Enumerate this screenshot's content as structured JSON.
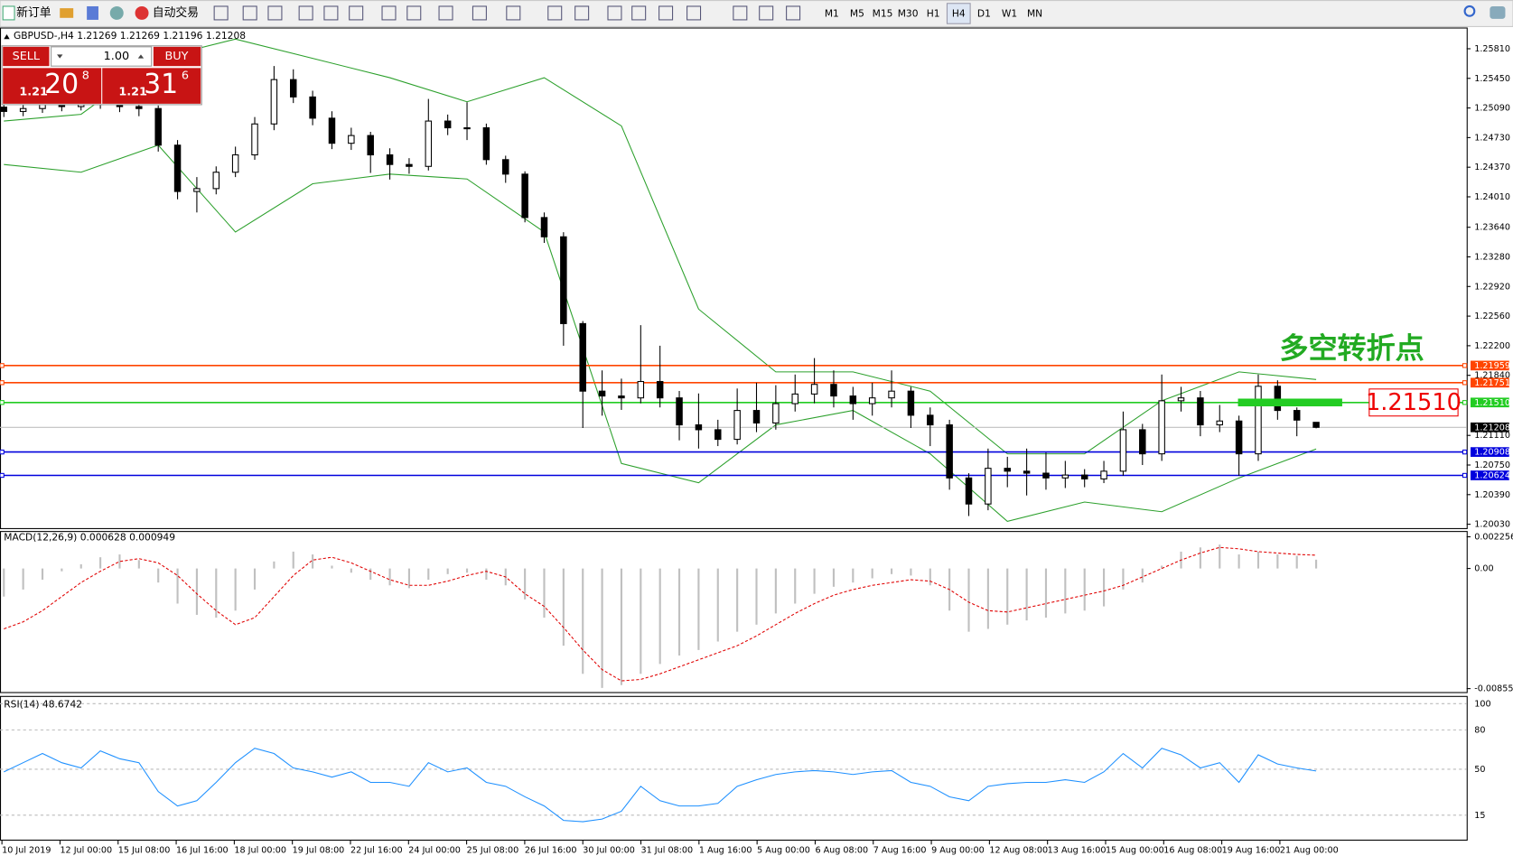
{
  "toolbar": {
    "new_order": "新订单",
    "auto_trading": "自动交易",
    "timeframes": [
      "M1",
      "M5",
      "M15",
      "M30",
      "H1",
      "H4",
      "D1",
      "W1",
      "MN"
    ],
    "active_timeframe": "H4"
  },
  "trade_panel": {
    "sell": "SELL",
    "buy": "BUY",
    "lot": "1.00",
    "sell_big": "1.21",
    "sell_main": "20",
    "sell_sup": "8",
    "buy_big": "1.21",
    "buy_main": "31",
    "buy_sup": "6"
  },
  "chart_data": [
    {
      "type": "candlestick",
      "title": "GBPUSD-,H4",
      "open": [
        1.251,
        1.25048,
        1.25083,
        1.2513,
        1.25107,
        1.25165,
        1.2513,
        1.25107,
        1.25083,
        1.24638,
        1.24075,
        1.2411,
        1.24309,
        1.2452,
        1.24896,
        1.25435,
        1.25224,
        1.24966,
        1.24661,
        1.24755,
        1.2452,
        1.24403,
        1.2438,
        1.24931,
        1.24849,
        1.24849,
        1.24462,
        1.24286,
        1.23758,
        1.23524,
        1.22469,
        1.21648,
        1.21589,
        1.21566,
        1.21765,
        1.21566,
        1.21238,
        1.21179,
        1.21062,
        1.21413,
        1.21261,
        1.21496,
        1.21613,
        1.2173,
        1.21589,
        1.21496,
        1.21566,
        1.21648,
        1.21355,
        1.21238,
        1.20593,
        1.20276,
        1.2071,
        1.20675,
        1.20651,
        1.20593,
        1.20628,
        1.20581,
        1.20675,
        1.21179,
        1.20886,
        1.21531,
        1.21566,
        1.21238,
        1.21285,
        1.20886,
        1.21707,
        1.21413,
        1.21269
      ],
      "high": [
        1.2518,
        1.2515,
        1.2521,
        1.252,
        1.2524,
        1.2522,
        1.2519,
        1.2516,
        1.2512,
        1.247,
        1.2425,
        1.2438,
        1.2462,
        1.2498,
        1.256,
        1.2556,
        1.253,
        1.2505,
        1.2485,
        1.248,
        1.246,
        1.2448,
        1.252,
        1.2501,
        1.2516,
        1.249,
        1.2451,
        1.2432,
        1.2382,
        1.2358,
        1.225,
        1.219,
        1.218,
        1.2245,
        1.222,
        1.2165,
        1.2162,
        1.213,
        1.2168,
        1.2175,
        1.2172,
        1.2185,
        1.2205,
        1.219,
        1.217,
        1.2175,
        1.219,
        1.217,
        1.2145,
        1.213,
        1.2065,
        1.2095,
        1.2085,
        1.2095,
        1.209,
        1.208,
        1.207,
        1.208,
        1.214,
        1.2125,
        1.2185,
        1.217,
        1.2165,
        1.2148,
        1.2135,
        1.2185,
        1.2178,
        1.2145,
        1.21269
      ],
      "low": [
        1.2498,
        1.2499,
        1.2503,
        1.2505,
        1.2506,
        1.2508,
        1.2504,
        1.2499,
        1.2456,
        1.2398,
        1.2382,
        1.2404,
        1.2425,
        1.2446,
        1.2482,
        1.2515,
        1.2488,
        1.2459,
        1.2458,
        1.243,
        1.2422,
        1.2429,
        1.2433,
        1.2476,
        1.247,
        1.244,
        1.2418,
        1.237,
        1.2345,
        1.222,
        1.212,
        1.2135,
        1.2142,
        1.215,
        1.2145,
        1.2105,
        1.2095,
        1.2098,
        1.21,
        1.2115,
        1.2118,
        1.214,
        1.215,
        1.2145,
        1.213,
        1.2135,
        1.2145,
        1.212,
        1.2098,
        1.2045,
        1.2013,
        1.202,
        1.2048,
        1.2038,
        1.2045,
        1.2047,
        1.2048,
        1.2053,
        1.2062,
        1.2075,
        1.208,
        1.214,
        1.211,
        1.2115,
        1.2062,
        1.208,
        1.213,
        1.211,
        1.21196
      ],
      "close": [
        1.25048,
        1.25083,
        1.2513,
        1.25107,
        1.25165,
        1.2513,
        1.25107,
        1.25083,
        1.24638,
        1.24075,
        1.2411,
        1.24309,
        1.2452,
        1.24896,
        1.25435,
        1.25224,
        1.24966,
        1.24661,
        1.24755,
        1.2452,
        1.24403,
        1.2438,
        1.24931,
        1.24849,
        1.24849,
        1.24462,
        1.24286,
        1.23758,
        1.23524,
        1.22469,
        1.21648,
        1.21589,
        1.21566,
        1.21765,
        1.21566,
        1.21238,
        1.21179,
        1.21062,
        1.21413,
        1.21261,
        1.21496,
        1.21613,
        1.2173,
        1.21589,
        1.21496,
        1.21566,
        1.21648,
        1.21355,
        1.21238,
        1.20593,
        1.20276,
        1.2071,
        1.20675,
        1.20651,
        1.20593,
        1.20628,
        1.20581,
        1.20675,
        1.21179,
        1.20886,
        1.21531,
        1.21566,
        1.21238,
        1.21285,
        1.20886,
        1.21707,
        1.21413,
        1.21296,
        1.21208
      ],
      "bands": {
        "index": [
          0,
          4,
          8,
          12,
          16,
          20,
          24,
          28,
          32,
          36,
          40,
          44,
          48,
          52,
          56,
          60,
          64,
          68
        ],
        "upper": [
          1.24931,
          1.25013,
          1.25693,
          1.25927,
          1.25693,
          1.25458,
          1.25165,
          1.25458,
          1.24872,
          1.22645,
          1.21882,
          1.21882,
          1.21648,
          1.20886,
          1.20886,
          1.21531,
          1.21882,
          1.21789
        ],
        "lower": [
          1.24403,
          1.24309,
          1.24638,
          1.23582,
          1.24169,
          1.24286,
          1.24227,
          1.23582,
          1.20769,
          1.20534,
          1.21238,
          1.21413,
          1.20886,
          1.20065,
          1.203,
          1.20182,
          1.20593,
          1.20945
        ],
        "color": "#2ca02c"
      },
      "up_color": "#ffffff",
      "down_color": "#000000",
      "levels": [
        {
          "value": 1.21959,
          "label": "1.21959",
          "color": "#ff4500"
        },
        {
          "value": 1.21751,
          "label": "1.21751",
          "color": "#ff4500"
        },
        {
          "value": 1.2151,
          "label": "1.21510",
          "color": "#22cc22"
        },
        {
          "value": 1.20908,
          "label": "1.20908",
          "color": "#0000dd"
        },
        {
          "value": 1.20624,
          "label": "1.20624",
          "color": "#0000dd"
        }
      ],
      "annotation": "多空转折点",
      "ylim": [
        1.19983,
        1.26068
      ],
      "yticks": [
        {
          "value": 1.2581,
          "label": "1.25810"
        },
        {
          "value": 1.2545,
          "label": "1.25450"
        },
        {
          "value": 1.2509,
          "label": "1.25090"
        },
        {
          "value": 1.2473,
          "label": "1.24730"
        },
        {
          "value": 1.2437,
          "label": "1.24370"
        },
        {
          "value": 1.2401,
          "label": "1.24010"
        },
        {
          "value": 1.2364,
          "label": "1.23640"
        },
        {
          "value": 1.2328,
          "label": "1.23280"
        },
        {
          "value": 1.2292,
          "label": "1.22920"
        },
        {
          "value": 1.2256,
          "label": "1.22560"
        },
        {
          "value": 1.222,
          "label": "1.22200"
        },
        {
          "value": 1.2184,
          "label": "1.21840"
        },
        {
          "value": 1.2111,
          "label": "1.21110"
        },
        {
          "value": 1.2075,
          "label": "1.20750"
        },
        {
          "value": 1.2039,
          "label": "1.20390"
        },
        {
          "value": 1.2003,
          "label": "1.20030"
        }
      ],
      "x_labels": [
        "10 Jul 2019",
        "12 Jul 00:00",
        "15 Jul 08:00",
        "16 Jul 16:00",
        "18 Jul 00:00",
        "19 Jul 08:00",
        "22 Jul 16:00",
        "24 Jul 00:00",
        "25 Jul 08:00",
        "26 Jul 16:00",
        "30 Jul 00:00",
        "31 Jul 08:00",
        "1 Aug 16:00",
        "5 Aug 00:00",
        "6 Aug 08:00",
        "7 Aug 16:00",
        "9 Aug 00:00",
        "12 Aug 08:00",
        "13 Aug 16:00",
        "15 Aug 00:00",
        "16 Aug 08:00",
        "19 Aug 16:00",
        "21 Aug 00:00"
      ]
    },
    {
      "type": "macd",
      "title": "MACD(12,26,9)",
      "histogram": [
        -0.002,
        -0.0015,
        -0.0008,
        -0.0002,
        0.0003,
        0.0008,
        0.001,
        0.0006,
        -0.001,
        -0.0025,
        -0.0033,
        -0.0035,
        -0.003,
        -0.0015,
        0.0005,
        0.0012,
        0.001,
        0.0002,
        -0.0003,
        -0.0008,
        -0.0012,
        -0.0014,
        -0.0008,
        -0.0004,
        -0.0003,
        -0.0008,
        -0.0012,
        -0.0022,
        -0.0035,
        -0.0055,
        -0.0075,
        -0.0085,
        -0.0083,
        -0.0075,
        -0.0068,
        -0.0062,
        -0.0058,
        -0.0052,
        -0.0045,
        -0.004,
        -0.0032,
        -0.0025,
        -0.0018,
        -0.0013,
        -0.001,
        -0.0007,
        -0.0004,
        -0.0005,
        -0.0012,
        -0.003,
        -0.0045,
        -0.0043,
        -0.004,
        -0.0037,
        -0.0035,
        -0.0032,
        -0.003,
        -0.0027,
        -0.0015,
        -0.001,
        0.0002,
        0.0012,
        0.0015,
        0.0017,
        0.001,
        0.0012,
        0.001,
        0.0009,
        0.000628
      ],
      "signal": [
        -0.0043,
        -0.0038,
        -0.003,
        -0.002,
        -0.001,
        -0.0002,
        0.0005,
        0.0007,
        0.0004,
        -0.0005,
        -0.0018,
        -0.003,
        -0.004,
        -0.0035,
        -0.002,
        -0.0005,
        0.0006,
        0.0008,
        0.0004,
        -0.0002,
        -0.0008,
        -0.0012,
        -0.0012,
        -0.0009,
        -0.0005,
        -0.0002,
        -0.0006,
        -0.0018,
        -0.0027,
        -0.0042,
        -0.0058,
        -0.0072,
        -0.008,
        -0.0079,
        -0.0075,
        -0.007,
        -0.0065,
        -0.006,
        -0.0055,
        -0.0048,
        -0.004,
        -0.0032,
        -0.0025,
        -0.0019,
        -0.0015,
        -0.0012,
        -0.001,
        -0.0008,
        -0.0009,
        -0.0015,
        -0.0024,
        -0.003,
        -0.0031,
        -0.0028,
        -0.0025,
        -0.0022,
        -0.0019,
        -0.0016,
        -0.0012,
        -0.0006,
        0.0,
        0.0006,
        0.0011,
        0.0015,
        0.0014,
        0.0012,
        0.0011,
        0.001,
        0.000949
      ],
      "histogram_color": "#c0c0c0",
      "signal_color": "#e00000",
      "ylim": [
        -0.0088,
        0.0026
      ],
      "yticks": [
        0.002256,
        {
          "value": 0,
          "label": "0.00"
        },
        -0.008553
      ]
    },
    {
      "type": "rsi",
      "title": "RSI(14)",
      "values": [
        48,
        55,
        62,
        55,
        51,
        64,
        58,
        55,
        33,
        22,
        26,
        40,
        55,
        66,
        62,
        51,
        48,
        44,
        48,
        40,
        40,
        37,
        55,
        48,
        51,
        40,
        37,
        29,
        22,
        11,
        10,
        12,
        18,
        37,
        26,
        22,
        22,
        24,
        37,
        42,
        46,
        48,
        49,
        48,
        46,
        48,
        49,
        40,
        37,
        29,
        26,
        37,
        39,
        40,
        40,
        42,
        40,
        48,
        62,
        51,
        66,
        61,
        51,
        55,
        40,
        61,
        54,
        51,
        48.6742
      ],
      "color": "#1e90ff",
      "ylim": [
        0,
        100
      ],
      "yticks": [
        15,
        50,
        80,
        100
      ]
    }
  ]
}
